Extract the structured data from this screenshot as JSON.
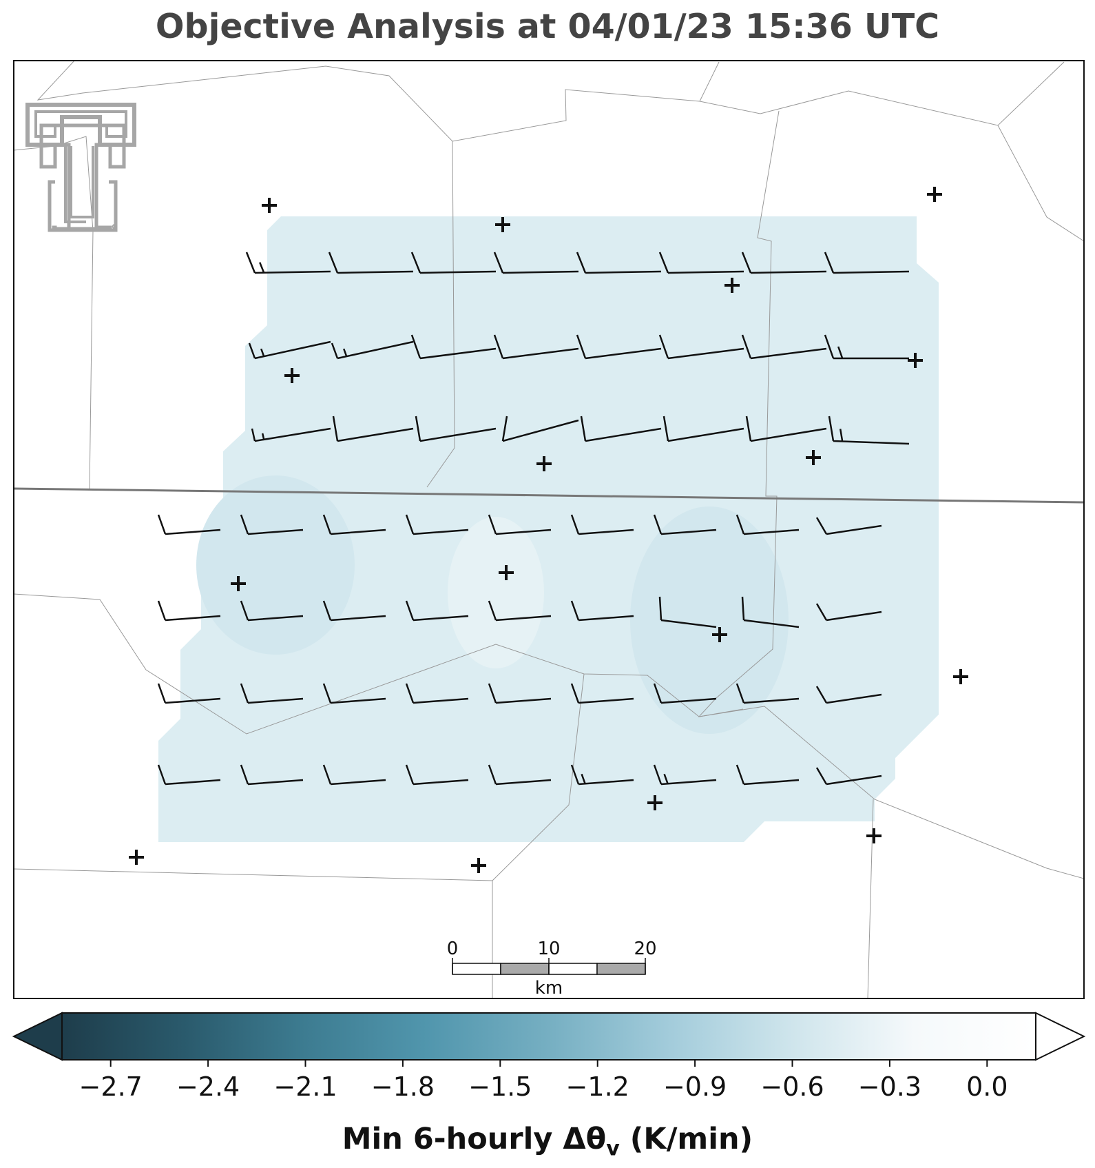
{
  "title": "Objective Analysis at 04/01/23 15:36 UTC",
  "colorbar": {
    "label_main": "Min 6-hourly Δθ",
    "label_sub": "v",
    "label_unit": " (K/min)",
    "min": -2.85,
    "max": 0.15,
    "ticks": [
      "−2.7",
      "−2.4",
      "−2.1",
      "−1.8",
      "−1.5",
      "−1.2",
      "−0.9",
      "−0.6",
      "−0.3",
      "0.0"
    ],
    "tick_values": [
      -2.7,
      -2.4,
      -2.1,
      -1.8,
      -1.5,
      -1.2,
      -0.9,
      -0.6,
      -0.3,
      0.0
    ],
    "colors": [
      "#1e3d4b",
      "#2a5a6c",
      "#3d7c91",
      "#5196ad",
      "#76afc2",
      "#a3ccdb",
      "#cfe5ec",
      "#f5f9fb",
      "#ffffff"
    ]
  },
  "scalebar": {
    "ticks": [
      "0",
      "10",
      "20"
    ],
    "unit": "km"
  },
  "field": {
    "fill_color": "#dcedf2",
    "fill_color_dark": "#d2e7ee",
    "fill_color_light": "#e6f2f5"
  },
  "colors": {
    "boundary": "#999999",
    "state_line": "#777777",
    "barb": "#111111",
    "station": "#111111",
    "logo": "#a6a6a6"
  },
  "logo": {
    "icon": "texas-tech-double-t-logo"
  }
}
